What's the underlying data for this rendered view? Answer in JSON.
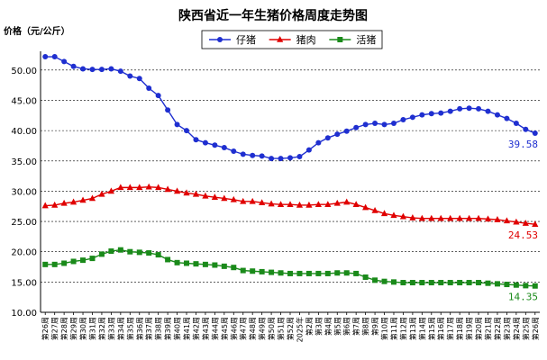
{
  "chart_data": {
    "type": "line",
    "title": "陕西省近一年生猪价格周度走势图",
    "ylabel": "价格（元/公斤）",
    "ylim": [
      10,
      55
    ],
    "yticks": [
      "10.00",
      "15.00",
      "20.00",
      "25.00",
      "30.00",
      "35.00",
      "40.00",
      "45.00",
      "50.00"
    ],
    "ytick_values": [
      10,
      15,
      20,
      25,
      30,
      35,
      40,
      45,
      50
    ],
    "grid": true,
    "legend_position": "top",
    "categories": [
      "第26周",
      "第27周",
      "第28周",
      "第29周",
      "第30周",
      "第31周",
      "第32周",
      "第33周",
      "第34周",
      "第35周",
      "第36周",
      "第37周",
      "第38周",
      "第39周",
      "第40周",
      "第41周",
      "第42周",
      "第43周",
      "第44周",
      "第45周",
      "第46周",
      "第47周",
      "第48周",
      "第49周",
      "第50周",
      "第51周",
      "第52周",
      "2025年",
      "第2周",
      "第3周",
      "第4周",
      "第5周",
      "第6周",
      "第7周",
      "第8周",
      "第9周",
      "第10周",
      "第11周",
      "第12周",
      "第13周",
      "第14周",
      "第15周",
      "第16周",
      "第17周",
      "第18周",
      "第19周",
      "第20周",
      "第21周",
      "第22周",
      "第23周",
      "第24周",
      "第25周",
      "第26周"
    ],
    "series": [
      {
        "name": "仔猪",
        "color": "#1f2fd0",
        "marker": "circle",
        "end_label": "39.58",
        "values": [
          52.2,
          52.2,
          51.4,
          50.6,
          50.2,
          50.1,
          50.1,
          50.2,
          49.8,
          49.0,
          48.6,
          47.0,
          45.8,
          43.4,
          41.0,
          40.0,
          38.5,
          38.0,
          37.6,
          37.2,
          36.6,
          36.1,
          35.9,
          35.8,
          35.4,
          35.4,
          35.5,
          35.7,
          36.8,
          38.0,
          38.8,
          39.4,
          39.9,
          40.5,
          41.0,
          41.2,
          41.0,
          41.2,
          41.8,
          42.2,
          42.6,
          42.8,
          42.9,
          43.2,
          43.6,
          43.7,
          43.6,
          43.2,
          42.6,
          42.0,
          41.2,
          40.2,
          39.58
        ]
      },
      {
        "name": "猪肉",
        "color": "#e00000",
        "marker": "triangle",
        "end_label": "24.53",
        "values": [
          27.6,
          27.7,
          28.0,
          28.2,
          28.5,
          28.8,
          29.5,
          30.0,
          30.6,
          30.6,
          30.6,
          30.7,
          30.6,
          30.3,
          30.0,
          29.7,
          29.5,
          29.2,
          29.0,
          28.8,
          28.6,
          28.3,
          28.3,
          28.1,
          27.9,
          27.8,
          27.8,
          27.7,
          27.7,
          27.8,
          27.8,
          28.0,
          28.2,
          27.8,
          27.3,
          26.8,
          26.3,
          26.0,
          25.8,
          25.6,
          25.5,
          25.5,
          25.5,
          25.5,
          25.5,
          25.5,
          25.5,
          25.4,
          25.3,
          25.1,
          24.9,
          24.7,
          24.53
        ]
      },
      {
        "name": "活猪",
        "color": "#1a8a1a",
        "marker": "square",
        "end_label": "14.35",
        "values": [
          17.9,
          17.9,
          18.1,
          18.4,
          18.6,
          18.9,
          19.6,
          20.1,
          20.3,
          20.0,
          19.9,
          19.8,
          19.5,
          18.7,
          18.2,
          18.1,
          18.0,
          17.9,
          17.8,
          17.6,
          17.4,
          16.9,
          16.8,
          16.7,
          16.6,
          16.5,
          16.4,
          16.4,
          16.4,
          16.4,
          16.4,
          16.5,
          16.5,
          16.4,
          15.8,
          15.3,
          15.1,
          15.0,
          14.9,
          14.9,
          14.9,
          14.9,
          14.9,
          14.9,
          14.9,
          14.9,
          14.9,
          14.8,
          14.7,
          14.6,
          14.5,
          14.4,
          14.35
        ]
      }
    ]
  }
}
